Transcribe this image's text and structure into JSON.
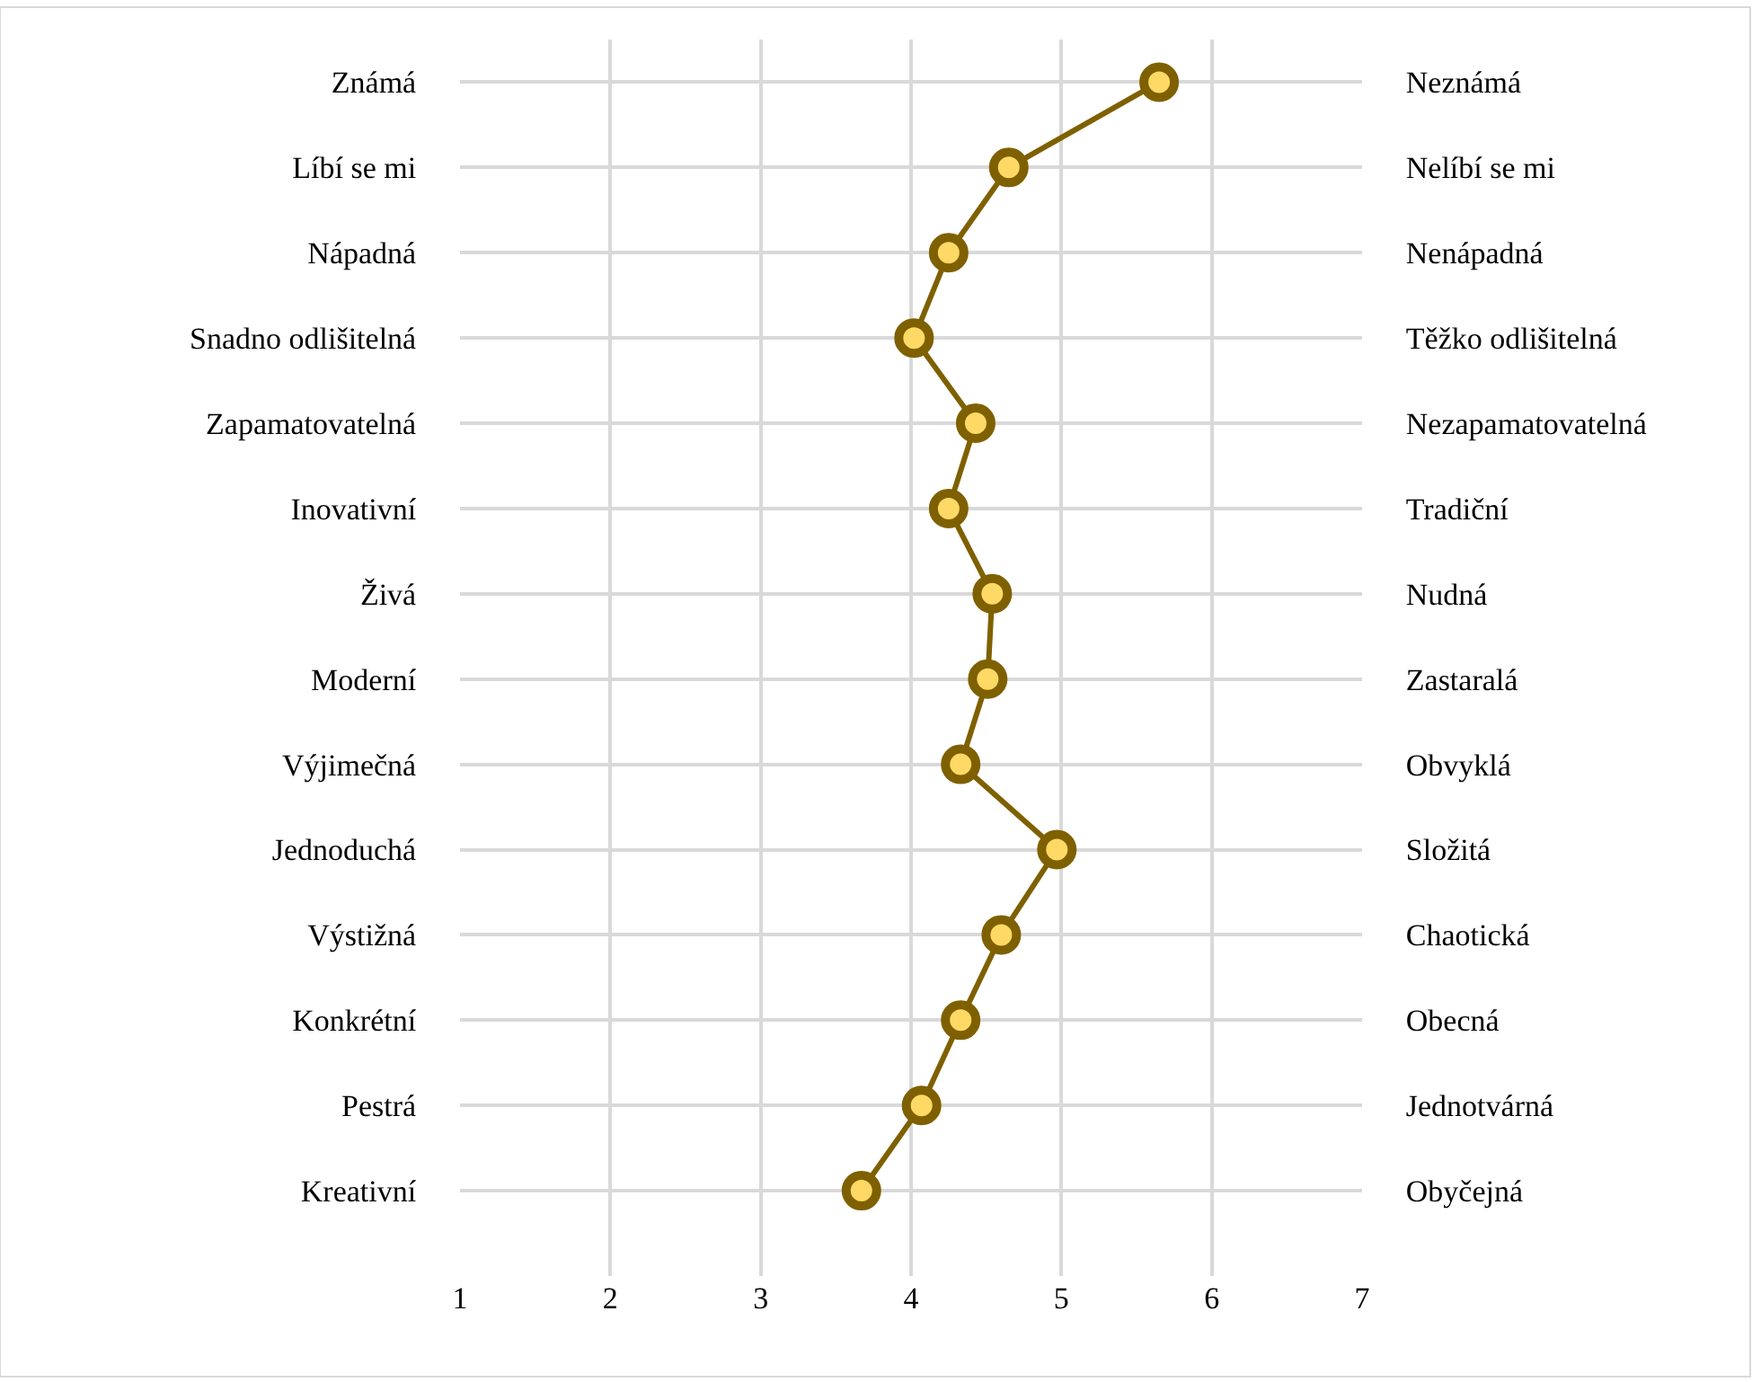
{
  "chart_data": {
    "type": "line",
    "orientation": "horizontal",
    "categories": [
      "Známá",
      "Líbí se mi",
      "Nápadná",
      "Snadno odlišitelná",
      "Zapamatovatelná",
      "Inovativní",
      "Živá",
      "Moderní",
      "Výjimečná",
      "Jednoduchá",
      "Výstižná",
      "Konkrétní",
      "Pestrá",
      "Kreativní"
    ],
    "y2_categories": [
      "Neznámá",
      "Nelíbí se mi",
      "Nenápadná",
      "Těžko odlišitelná",
      "Nezapamatovatelná",
      "Tradiční",
      "Nudná",
      "Zastaralá",
      "Obvyklá",
      "Složitá",
      "Chaotická",
      "Obecná",
      "Jednotvárná",
      "Obyčejná"
    ],
    "series": [
      {
        "color": "#7f6000",
        "values": [
          5.65,
          4.65,
          4.25,
          4.02,
          4.43,
          4.25,
          4.54,
          4.51,
          4.33,
          4.97,
          4.6,
          4.33,
          4.07,
          3.67
        ]
      }
    ],
    "xlim": [
      1,
      7
    ],
    "xticks": [
      1,
      2,
      3,
      4,
      5,
      6,
      7
    ],
    "grid": true,
    "marker": "circle",
    "line_style": "solid"
  }
}
